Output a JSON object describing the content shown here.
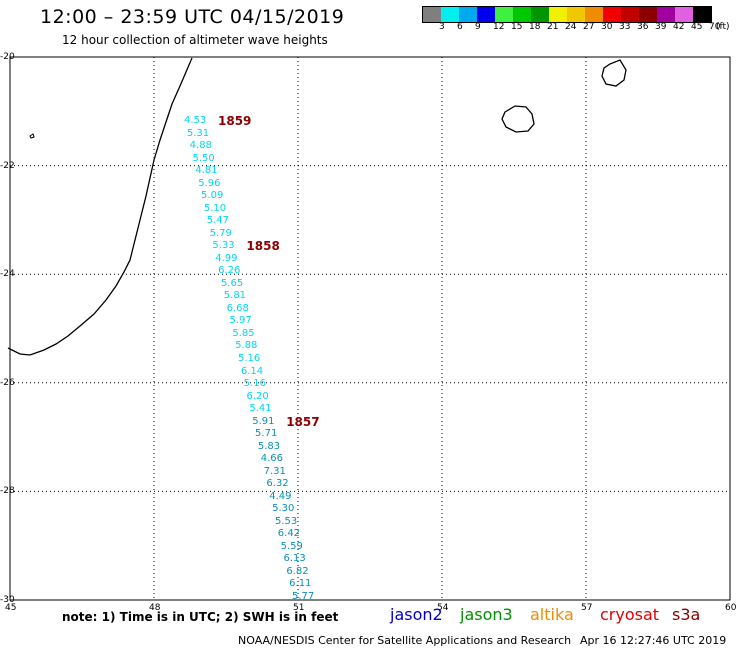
{
  "header": {
    "title": "12:00 – 23:59 UTC 04/15/2019",
    "subtitle": "12 hour collection of altimeter wave heights"
  },
  "colorscale": {
    "unit": "(ft)",
    "bins": [
      {
        "label": "3",
        "color": "#7f7f7f"
      },
      {
        "label": "6",
        "color": "#00f0f0"
      },
      {
        "label": "9",
        "color": "#00a8f0"
      },
      {
        "label": "12",
        "color": "#0000f0"
      },
      {
        "label": "15",
        "color": "#40f040"
      },
      {
        "label": "18",
        "color": "#00c800"
      },
      {
        "label": "21",
        "color": "#009600"
      },
      {
        "label": "24",
        "color": "#f0f000"
      },
      {
        "label": "27",
        "color": "#f0c800"
      },
      {
        "label": "30",
        "color": "#f08c00"
      },
      {
        "label": "33",
        "color": "#f00000"
      },
      {
        "label": "36",
        "color": "#c00000"
      },
      {
        "label": "39",
        "color": "#8c0000"
      },
      {
        "label": "42",
        "color": "#a000a0"
      },
      {
        "label": "45",
        "color": "#e060e0"
      },
      {
        "label": "70",
        "color": "#000000"
      }
    ]
  },
  "axes": {
    "lat_labels": [
      "-20",
      "-22",
      "-24",
      "-26",
      "-28",
      "-30"
    ],
    "lon_labels": [
      "45",
      "48",
      "51",
      "54",
      "57",
      "60"
    ]
  },
  "track": {
    "swh_values": [
      "4.53",
      "5.31",
      "4.88",
      "5.50",
      "4.81",
      "5.96",
      "5.09",
      "5.10",
      "5.47",
      "5.79",
      "5.33",
      "4.99",
      "6.26",
      "5.65",
      "5.81",
      "6.68",
      "5.97",
      "5.85",
      "5.88",
      "5.16",
      "6.14",
      "5.16",
      "6.20",
      "5.41",
      "5.91",
      "5.71",
      "5.83",
      "4.66",
      "7.31",
      "6.32",
      "4.49",
      "5.30",
      "5.53",
      "6.42",
      "5.59",
      "6.13",
      "6.82",
      "6.11",
      "5.77"
    ],
    "orbit_labels": [
      "1859",
      "1858",
      "1857"
    ]
  },
  "notes": "note: 1) Time is in UTC; 2) SWH is in feet",
  "satellites": [
    {
      "name": "jason2",
      "color": "#0000d0"
    },
    {
      "name": "jason3",
      "color": "#009000"
    },
    {
      "name": "altika",
      "color": "#f08c00"
    },
    {
      "name": "cryosat",
      "color": "#e00000"
    },
    {
      "name": "s3a",
      "color": "#8b0000"
    }
  ],
  "footer": {
    "agency": "NOAA/NESDIS Center for Satellite Applications and Research",
    "timestamp": "Apr 16 12:27:46 UTC 2019"
  }
}
